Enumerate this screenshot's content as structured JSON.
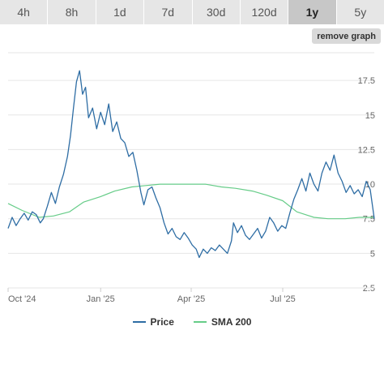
{
  "tabs": [
    {
      "label": "4h",
      "active": false
    },
    {
      "label": "8h",
      "active": false
    },
    {
      "label": "1d",
      "active": false
    },
    {
      "label": "7d",
      "active": false
    },
    {
      "label": "30d",
      "active": false
    },
    {
      "label": "120d",
      "active": false
    },
    {
      "label": "1y",
      "active": true
    },
    {
      "label": "5y",
      "active": false
    }
  ],
  "remove_graph_label": "remove graph",
  "legend": {
    "price_label": "Price",
    "sma_label": "SMA 200"
  },
  "colors": {
    "price": "#2e6da4",
    "sma": "#66cc88",
    "grid": "#e6e6e6",
    "active_tab": "#c7c7c7"
  },
  "chart_data": {
    "type": "line",
    "title": "",
    "xlabel": "",
    "ylabel": "",
    "ylim": [
      2.5,
      19.5
    ],
    "y_ticks": [
      2.5,
      5,
      7.5,
      10,
      12.5,
      15,
      17.5
    ],
    "y_tick_labels": [
      "2.5",
      "5",
      "7.5",
      "10",
      "12.5",
      "15",
      "17.5"
    ],
    "x_ticks": [
      {
        "label": "Oct '24",
        "date": "2024-10-01"
      },
      {
        "label": "Jan '25",
        "date": "2025-01-01"
      },
      {
        "label": "Apr '25",
        "date": "2025-04-01"
      },
      {
        "label": "Jul '25",
        "date": "2025-07-01"
      }
    ],
    "x_range": [
      "2024-10-01",
      "2025-09-30"
    ],
    "grid": true,
    "legend_position": "bottom",
    "series": [
      {
        "name": "Price",
        "points": [
          [
            "2024-10-01",
            6.8
          ],
          [
            "2024-10-05",
            7.6
          ],
          [
            "2024-10-09",
            7.0
          ],
          [
            "2024-10-13",
            7.5
          ],
          [
            "2024-10-17",
            7.9
          ],
          [
            "2024-10-21",
            7.4
          ],
          [
            "2024-10-25",
            8.0
          ],
          [
            "2024-10-29",
            7.8
          ],
          [
            "2024-11-02",
            7.2
          ],
          [
            "2024-11-05",
            7.5
          ],
          [
            "2024-11-09",
            8.4
          ],
          [
            "2024-11-13",
            9.4
          ],
          [
            "2024-11-17",
            8.6
          ],
          [
            "2024-11-21",
            9.8
          ],
          [
            "2024-11-25",
            10.7
          ],
          [
            "2024-11-29",
            12.0
          ],
          [
            "2024-12-02",
            13.5
          ],
          [
            "2024-12-05",
            15.5
          ],
          [
            "2024-12-08",
            17.4
          ],
          [
            "2024-12-11",
            18.2
          ],
          [
            "2024-12-14",
            16.5
          ],
          [
            "2024-12-17",
            17.0
          ],
          [
            "2024-12-20",
            14.8
          ],
          [
            "2024-12-24",
            15.5
          ],
          [
            "2024-12-28",
            14.0
          ],
          [
            "2025-01-01",
            15.2
          ],
          [
            "2025-01-05",
            14.3
          ],
          [
            "2025-01-09",
            15.8
          ],
          [
            "2025-01-13",
            13.8
          ],
          [
            "2025-01-17",
            14.5
          ],
          [
            "2025-01-21",
            13.3
          ],
          [
            "2025-01-25",
            13.0
          ],
          [
            "2025-01-29",
            12.0
          ],
          [
            "2025-02-02",
            12.3
          ],
          [
            "2025-02-06",
            11.0
          ],
          [
            "2025-02-10",
            9.4
          ],
          [
            "2025-02-13",
            8.5
          ],
          [
            "2025-02-17",
            9.6
          ],
          [
            "2025-02-21",
            9.8
          ],
          [
            "2025-02-25",
            9.0
          ],
          [
            "2025-03-01",
            8.3
          ],
          [
            "2025-03-05",
            7.2
          ],
          [
            "2025-03-09",
            6.4
          ],
          [
            "2025-03-13",
            6.8
          ],
          [
            "2025-03-17",
            6.2
          ],
          [
            "2025-03-21",
            6.0
          ],
          [
            "2025-03-25",
            6.5
          ],
          [
            "2025-03-29",
            6.1
          ],
          [
            "2025-04-02",
            5.6
          ],
          [
            "2025-04-06",
            5.3
          ],
          [
            "2025-04-09",
            4.7
          ],
          [
            "2025-04-13",
            5.3
          ],
          [
            "2025-04-17",
            5.0
          ],
          [
            "2025-04-21",
            5.4
          ],
          [
            "2025-04-25",
            5.2
          ],
          [
            "2025-04-29",
            5.6
          ],
          [
            "2025-05-03",
            5.3
          ],
          [
            "2025-05-07",
            5.0
          ],
          [
            "2025-05-11",
            5.9
          ],
          [
            "2025-05-13",
            7.2
          ],
          [
            "2025-05-17",
            6.5
          ],
          [
            "2025-05-21",
            7.0
          ],
          [
            "2025-05-25",
            6.3
          ],
          [
            "2025-05-29",
            6.0
          ],
          [
            "2025-06-02",
            6.4
          ],
          [
            "2025-06-06",
            6.8
          ],
          [
            "2025-06-10",
            6.1
          ],
          [
            "2025-06-14",
            6.6
          ],
          [
            "2025-06-18",
            7.6
          ],
          [
            "2025-06-22",
            7.2
          ],
          [
            "2025-06-26",
            6.6
          ],
          [
            "2025-06-30",
            7.0
          ],
          [
            "2025-07-04",
            6.8
          ],
          [
            "2025-07-08",
            7.9
          ],
          [
            "2025-07-12",
            8.9
          ],
          [
            "2025-07-16",
            9.6
          ],
          [
            "2025-07-20",
            10.4
          ],
          [
            "2025-07-24",
            9.5
          ],
          [
            "2025-07-28",
            10.8
          ],
          [
            "2025-08-01",
            10.0
          ],
          [
            "2025-08-05",
            9.5
          ],
          [
            "2025-08-09",
            10.8
          ],
          [
            "2025-08-13",
            11.6
          ],
          [
            "2025-08-17",
            11.0
          ],
          [
            "2025-08-21",
            12.1
          ],
          [
            "2025-08-25",
            10.8
          ],
          [
            "2025-08-29",
            10.2
          ],
          [
            "2025-09-02",
            9.4
          ],
          [
            "2025-09-06",
            9.9
          ],
          [
            "2025-09-10",
            9.3
          ],
          [
            "2025-09-14",
            9.6
          ],
          [
            "2025-09-18",
            9.1
          ],
          [
            "2025-09-22",
            10.2
          ],
          [
            "2025-09-26",
            9.6
          ],
          [
            "2025-09-30",
            7.5
          ]
        ]
      },
      {
        "name": "SMA 200",
        "points": [
          [
            "2024-10-01",
            8.6
          ],
          [
            "2024-10-15",
            8.1
          ],
          [
            "2024-11-01",
            7.6
          ],
          [
            "2024-11-15",
            7.7
          ],
          [
            "2024-12-01",
            8.0
          ],
          [
            "2024-12-15",
            8.7
          ],
          [
            "2025-01-01",
            9.1
          ],
          [
            "2025-01-15",
            9.5
          ],
          [
            "2025-02-01",
            9.8
          ],
          [
            "2025-02-15",
            9.9
          ],
          [
            "2025-03-01",
            10.0
          ],
          [
            "2025-03-15",
            10.0
          ],
          [
            "2025-04-01",
            10.0
          ],
          [
            "2025-04-15",
            10.0
          ],
          [
            "2025-05-01",
            9.8
          ],
          [
            "2025-05-15",
            9.7
          ],
          [
            "2025-06-01",
            9.5
          ],
          [
            "2025-06-15",
            9.2
          ],
          [
            "2025-07-01",
            8.8
          ],
          [
            "2025-07-15",
            8.0
          ],
          [
            "2025-08-01",
            7.6
          ],
          [
            "2025-08-15",
            7.5
          ],
          [
            "2025-09-01",
            7.5
          ],
          [
            "2025-09-15",
            7.6
          ],
          [
            "2025-09-30",
            7.6
          ]
        ]
      }
    ]
  }
}
